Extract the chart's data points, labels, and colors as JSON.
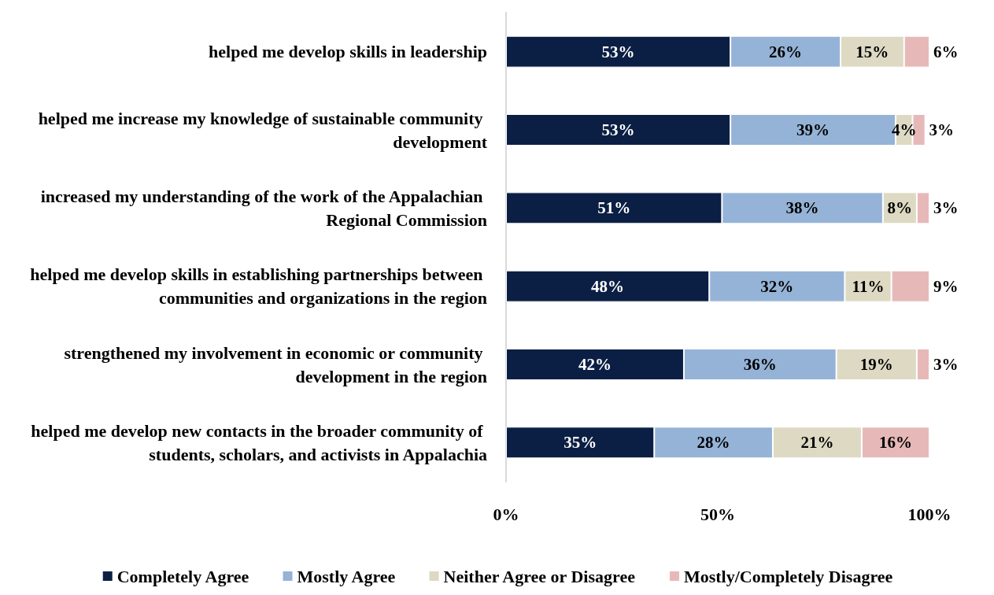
{
  "chart_data": {
    "type": "bar",
    "orientation": "horizontal",
    "stacked": true,
    "categories": [
      "helped me develop skills in leadership",
      "helped me increase my knowledge of sustainable community development",
      "increased my understanding of the work of the Appalachian Regional Commission",
      "helped me develop skills in establishing partnerships between communities and organizations in the region",
      "strengthened my involvement in economic or community development in the region",
      "helped me develop new contacts in the broader community of students, scholars, and activists in Appalachia"
    ],
    "series": [
      {
        "name": "Completely Agree",
        "color": "#0b1f44",
        "values": [
          53,
          53,
          51,
          48,
          42,
          35
        ],
        "value_labels": [
          "53%",
          "53%",
          "51%",
          "48%",
          "42%",
          "35%"
        ]
      },
      {
        "name": "Mostly Agree",
        "color": "#95b3d7",
        "values": [
          26,
          39,
          38,
          32,
          36,
          28
        ],
        "value_labels": [
          "26%",
          "39%",
          "38%",
          "32%",
          "36%",
          "28%"
        ]
      },
      {
        "name": "Neither Agree or Disagree",
        "color": "#ddd9c3",
        "values": [
          15,
          4,
          8,
          11,
          19,
          21
        ],
        "value_labels": [
          "15%",
          "4%",
          "8%",
          "11%",
          "19%",
          "21%"
        ]
      },
      {
        "name": "Mostly/Completely Disagree",
        "color": "#e6b9b8",
        "values": [
          6,
          3,
          3,
          9,
          3,
          16
        ],
        "value_labels": [
          "6%",
          "3%",
          "3%",
          "9%",
          "3%",
          "16%"
        ]
      }
    ],
    "xlim": [
      0,
      100
    ],
    "xticks": [
      {
        "value": 0,
        "label": "0%"
      },
      {
        "value": 50,
        "label": "50%"
      },
      {
        "value": 100,
        "label": "100%"
      }
    ],
    "grid": false,
    "legend": "bottom"
  }
}
